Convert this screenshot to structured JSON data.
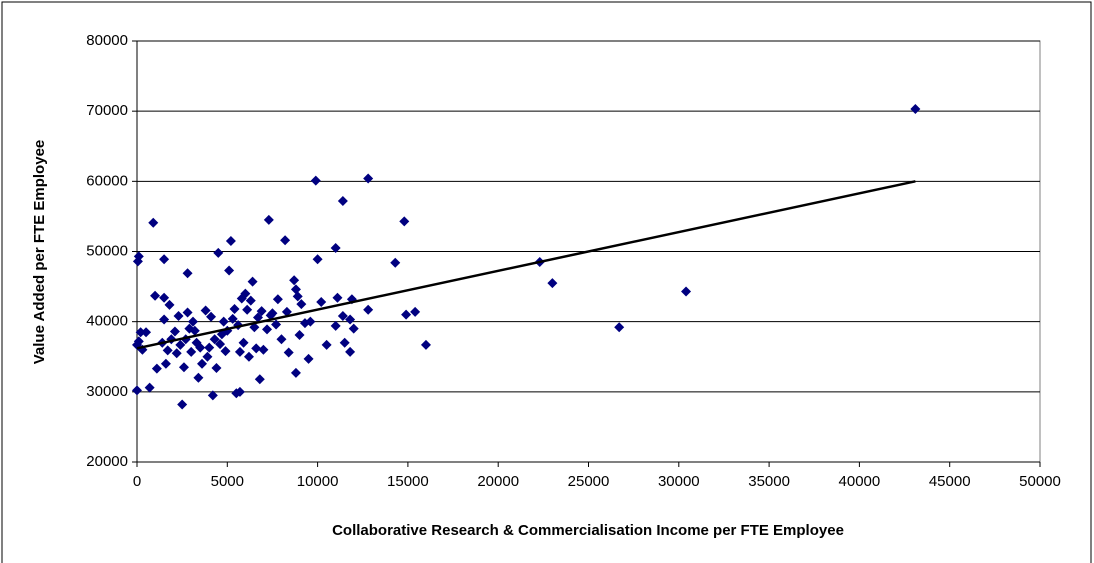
{
  "chart_data": {
    "type": "scatter",
    "x_label": "Collaborative Research & Commercialisation Income per FTE Employee",
    "y_label": "Value Added per FTE Employee",
    "xlim": [
      0,
      50000
    ],
    "xticks": [
      0,
      5000,
      10000,
      15000,
      20000,
      25000,
      30000,
      35000,
      40000,
      45000,
      50000
    ],
    "ylim": [
      20000,
      80000
    ],
    "yticks": [
      20000,
      30000,
      40000,
      50000,
      60000,
      70000,
      80000
    ],
    "grid": true,
    "series": [
      {
        "color": "#000080",
        "x": [
          43100,
          22300,
          23000,
          26700,
          30400,
          16000,
          15400,
          14900,
          14800,
          14300,
          12800,
          9900,
          11400,
          12800,
          11900,
          11800,
          11800,
          11500,
          11400,
          11100,
          11000,
          11000,
          10500,
          10000,
          9600,
          9500,
          9300,
          9100,
          8900,
          8800,
          8700,
          8800,
          8300,
          8200,
          8400,
          8000,
          7800,
          7700,
          7400,
          7300,
          7200,
          7000,
          6900,
          6800,
          6700,
          6500,
          6400,
          6300,
          6200,
          6100,
          6000,
          5900,
          5800,
          5700,
          5700,
          5500,
          5400,
          5300,
          5200,
          5100,
          5000,
          4900,
          4800,
          4600,
          4500,
          4400,
          4300,
          4200,
          4100,
          4000,
          3900,
          3800,
          3600,
          3500,
          3400,
          3200,
          3100,
          3000,
          2900,
          2800,
          2800,
          2700,
          2600,
          2500,
          2400,
          2300,
          2200,
          2100,
          1900,
          1800,
          1700,
          1600,
          1500,
          1500,
          1400,
          1100,
          1000,
          900,
          700,
          500,
          300,
          200,
          100,
          50,
          0,
          0,
          100,
          1500,
          3300,
          4700,
          5600,
          6600,
          7500,
          9000,
          10200,
          12000
        ],
        "y": [
          70300,
          48500,
          45500,
          39200,
          44300,
          36700,
          41400,
          41000,
          54300,
          48400,
          60400,
          60100,
          57200,
          41700,
          43200,
          40300,
          35700,
          37000,
          40800,
          43400,
          50500,
          39400,
          36700,
          48900,
          40000,
          34700,
          39800,
          42500,
          43600,
          44600,
          45900,
          32700,
          41400,
          51600,
          35600,
          37500,
          43200,
          39600,
          40900,
          54500,
          38900,
          36000,
          41500,
          31800,
          40600,
          39200,
          45700,
          43000,
          35000,
          41700,
          44000,
          37000,
          43300,
          35700,
          30000,
          29800,
          41800,
          40400,
          51500,
          47300,
          38700,
          35800,
          40000,
          36800,
          49800,
          33400,
          37500,
          29500,
          40700,
          36300,
          35000,
          41600,
          34000,
          36300,
          32000,
          38700,
          40000,
          35700,
          39000,
          46900,
          41300,
          37500,
          33500,
          28200,
          36700,
          40800,
          35500,
          38600,
          37500,
          42400,
          35900,
          34000,
          48900,
          43400,
          37000,
          33300,
          43700,
          54100,
          30600,
          38500,
          36000,
          38500,
          49300,
          48600,
          36700,
          30200,
          37200,
          40300,
          37000,
          38200,
          39500,
          36200,
          41200,
          38100,
          42800,
          39000
        ]
      }
    ],
    "trendline": {
      "color": "#000000",
      "x": [
        0,
        43100
      ],
      "y": [
        36200,
        60000
      ]
    }
  }
}
